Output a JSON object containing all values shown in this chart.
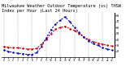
{
  "title": "Milwaukee Weather Outdoor Temperature (vs) THSW Index per Hour (Last 24 Hours)",
  "hours": [
    0,
    1,
    2,
    3,
    4,
    5,
    6,
    7,
    8,
    9,
    10,
    11,
    12,
    13,
    14,
    15,
    16,
    17,
    18,
    19,
    20,
    21,
    22,
    23
  ],
  "temp": [
    28,
    27,
    26,
    26,
    25,
    24,
    24,
    25,
    32,
    40,
    50,
    57,
    60,
    62,
    58,
    55,
    50,
    44,
    40,
    36,
    34,
    32,
    30,
    29
  ],
  "thsw": [
    22,
    20,
    18,
    17,
    16,
    15,
    15,
    18,
    28,
    42,
    56,
    66,
    72,
    78,
    70,
    60,
    52,
    44,
    38,
    33,
    30,
    26,
    24,
    22
  ],
  "temp_color": "#cc0000",
  "thsw_color": "#0000cc",
  "bg_color": "#ffffff",
  "ylim": [
    10,
    85
  ],
  "yticks": [
    20,
    30,
    40,
    50,
    60,
    70,
    80
  ],
  "grid_hours": [
    0,
    3,
    6,
    9,
    12,
    15,
    18,
    21
  ],
  "grid_color": "#999999",
  "title_fontsize": 3.8,
  "line_width": 0.8,
  "marker_size": 1.5
}
